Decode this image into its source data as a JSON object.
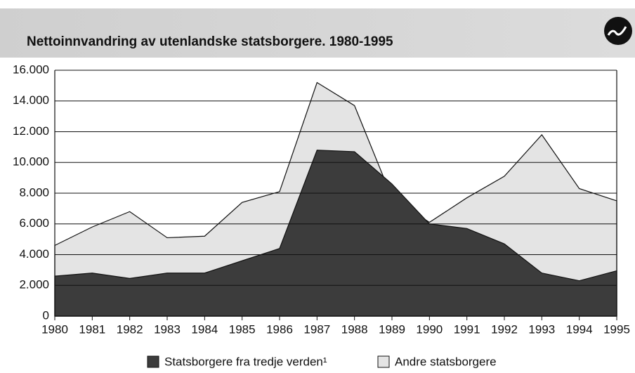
{
  "chart_data": {
    "type": "area",
    "title": "Nettoinnvandring av utenlandske statsborgere. 1980-1995",
    "x": [
      1980,
      1981,
      1982,
      1983,
      1984,
      1985,
      1986,
      1987,
      1988,
      1989,
      1990,
      1991,
      1992,
      1993,
      1994,
      1995
    ],
    "xlim": [
      1980,
      1995
    ],
    "xticks": [
      1980,
      1981,
      1982,
      1983,
      1984,
      1985,
      1986,
      1987,
      1988,
      1989,
      1990,
      1991,
      1992,
      1993,
      1994,
      1995
    ],
    "ylim": [
      0,
      16000
    ],
    "yticks": [
      0,
      {
        "value": 2000,
        "label": "2.000"
      },
      {
        "value": 4000,
        "label": "4.000"
      },
      {
        "value": 6000,
        "label": "6.000"
      },
      {
        "value": 8000,
        "label": "8.000"
      },
      {
        "value": 10000,
        "label": "10.000"
      },
      {
        "value": 12000,
        "label": "12.000"
      },
      {
        "value": 14000,
        "label": "14.000"
      },
      {
        "value": 16000,
        "label": "16.000"
      }
    ],
    "grid": true,
    "legend": "bottom",
    "series": [
      {
        "name": "Andre statsborgere",
        "color": "#e4e4e4",
        "values": [
          4600,
          5800,
          6800,
          5100,
          5200,
          7400,
          8100,
          15200,
          13700,
          7700,
          6100,
          7700,
          9100,
          11800,
          8300,
          7500
        ]
      },
      {
        "name": "Statsborgere fra tredje verden¹",
        "color": "#3c3c3c",
        "values": [
          2600,
          2800,
          2450,
          2800,
          2800,
          3600,
          4400,
          10800,
          10700,
          8600,
          6000,
          5700,
          4700,
          2800,
          2300,
          2950
        ]
      }
    ]
  }
}
